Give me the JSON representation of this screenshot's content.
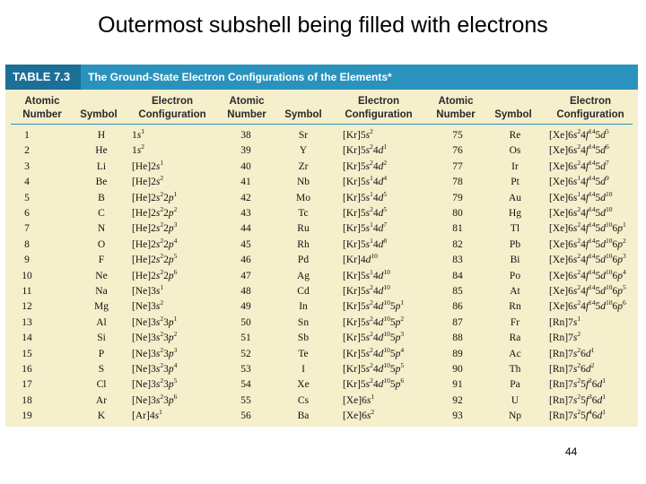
{
  "slide": {
    "title": "Outermost subshell being filled with electrons",
    "page_number": "44"
  },
  "table": {
    "label": "TABLE 7.3",
    "caption": "The Ground-State Electron Configurations of the Elements*",
    "headers": {
      "atomic_number": [
        "Atomic",
        "Number"
      ],
      "symbol": "Symbol",
      "electron_configuration": [
        "Electron",
        "Configuration"
      ]
    },
    "columns": [
      [
        {
          "n": "1",
          "s": "H",
          "c": "1s^1"
        },
        {
          "n": "2",
          "s": "He",
          "c": "1s^2"
        },
        {
          "n": "3",
          "s": "Li",
          "c": "[He]2s^1"
        },
        {
          "n": "4",
          "s": "Be",
          "c": "[He]2s^2"
        },
        {
          "n": "5",
          "s": "B",
          "c": "[He]2s^22p^1"
        },
        {
          "n": "6",
          "s": "C",
          "c": "[He]2s^22p^2"
        },
        {
          "n": "7",
          "s": "N",
          "c": "[He]2s^22p^3"
        },
        {
          "n": "8",
          "s": "O",
          "c": "[He]2s^22p^4"
        },
        {
          "n": "9",
          "s": "F",
          "c": "[He]2s^22p^5"
        },
        {
          "n": "10",
          "s": "Ne",
          "c": "[He]2s^22p^6"
        },
        {
          "n": "11",
          "s": "Na",
          "c": "[Ne]3s^1"
        },
        {
          "n": "12",
          "s": "Mg",
          "c": "[Ne]3s^2"
        },
        {
          "n": "13",
          "s": "Al",
          "c": "[Ne]3s^23p^1"
        },
        {
          "n": "14",
          "s": "Si",
          "c": "[Ne]3s^23p^2"
        },
        {
          "n": "15",
          "s": "P",
          "c": "[Ne]3s^23p^3"
        },
        {
          "n": "16",
          "s": "S",
          "c": "[Ne]3s^23p^4"
        },
        {
          "n": "17",
          "s": "Cl",
          "c": "[Ne]3s^23p^5"
        },
        {
          "n": "18",
          "s": "Ar",
          "c": "[Ne]3s^23p^6"
        },
        {
          "n": "19",
          "s": "K",
          "c": "[Ar]4s^1"
        }
      ],
      [
        {
          "n": "38",
          "s": "Sr",
          "c": "[Kr]5s^2"
        },
        {
          "n": "39",
          "s": "Y",
          "c": "[Kr]5s^24d^1"
        },
        {
          "n": "40",
          "s": "Zr",
          "c": "[Kr]5s^24d^2"
        },
        {
          "n": "41",
          "s": "Nb",
          "c": "[Kr]5s^14d^4"
        },
        {
          "n": "42",
          "s": "Mo",
          "c": "[Kr]5s^14d^5"
        },
        {
          "n": "43",
          "s": "Tc",
          "c": "[Kr]5s^24d^5"
        },
        {
          "n": "44",
          "s": "Ru",
          "c": "[Kr]5s^14d^7"
        },
        {
          "n": "45",
          "s": "Rh",
          "c": "[Kr]5s^14d^8"
        },
        {
          "n": "46",
          "s": "Pd",
          "c": "[Kr]4d^10"
        },
        {
          "n": "47",
          "s": "Ag",
          "c": "[Kr]5s^14d^10"
        },
        {
          "n": "48",
          "s": "Cd",
          "c": "[Kr]5s^24d^10"
        },
        {
          "n": "49",
          "s": "In",
          "c": "[Kr]5s^24d^105p^1"
        },
        {
          "n": "50",
          "s": "Sn",
          "c": "[Kr]5s^24d^105p^2"
        },
        {
          "n": "51",
          "s": "Sb",
          "c": "[Kr]5s^24d^105p^3"
        },
        {
          "n": "52",
          "s": "Te",
          "c": "[Kr]5s^24d^105p^4"
        },
        {
          "n": "53",
          "s": "I",
          "c": "[Kr]5s^24d^105p^5"
        },
        {
          "n": "54",
          "s": "Xe",
          "c": "[Kr]5s^24d^105p^6"
        },
        {
          "n": "55",
          "s": "Cs",
          "c": "[Xe]6s^1"
        },
        {
          "n": "56",
          "s": "Ba",
          "c": "[Xe]6s^2"
        }
      ],
      [
        {
          "n": "75",
          "s": "Re",
          "c": "[Xe]6s^24f^145d^5"
        },
        {
          "n": "76",
          "s": "Os",
          "c": "[Xe]6s^24f^145d^6"
        },
        {
          "n": "77",
          "s": "Ir",
          "c": "[Xe]6s^24f^145d^7"
        },
        {
          "n": "78",
          "s": "Pt",
          "c": "[Xe]6s^14f^145d^9"
        },
        {
          "n": "79",
          "s": "Au",
          "c": "[Xe]6s^14f^145d^10"
        },
        {
          "n": "80",
          "s": "Hg",
          "c": "[Xe]6s^24f^145d^10"
        },
        {
          "n": "81",
          "s": "Tl",
          "c": "[Xe]6s^24f^145d^106p^1"
        },
        {
          "n": "82",
          "s": "Pb",
          "c": "[Xe]6s^24f^145d^106p^2"
        },
        {
          "n": "83",
          "s": "Bi",
          "c": "[Xe]6s^24f^145d^106p^3"
        },
        {
          "n": "84",
          "s": "Po",
          "c": "[Xe]6s^24f^145d^106p^4"
        },
        {
          "n": "85",
          "s": "At",
          "c": "[Xe]6s^24f^145d^106p^5"
        },
        {
          "n": "86",
          "s": "Rn",
          "c": "[Xe]6s^24f^145d^106p^6"
        },
        {
          "n": "87",
          "s": "Fr",
          "c": "[Rn]7s^1"
        },
        {
          "n": "88",
          "s": "Ra",
          "c": "[Rn]7s^2"
        },
        {
          "n": "89",
          "s": "Ac",
          "c": "[Rn]7s^26d^1"
        },
        {
          "n": "90",
          "s": "Th",
          "c": "[Rn]7s^26d^2"
        },
        {
          "n": "91",
          "s": "Pa",
          "c": "[Rn]7s^25f^26d^1"
        },
        {
          "n": "92",
          "s": "U",
          "c": "[Rn]7s^25f^36d^1"
        },
        {
          "n": "93",
          "s": "Np",
          "c": "[Rn]7s^25f^46d^1"
        }
      ]
    ]
  },
  "colors": {
    "caption_bar": "#2a93bd",
    "caption_label": "#1c6f97",
    "table_background": "#f5efcb"
  }
}
